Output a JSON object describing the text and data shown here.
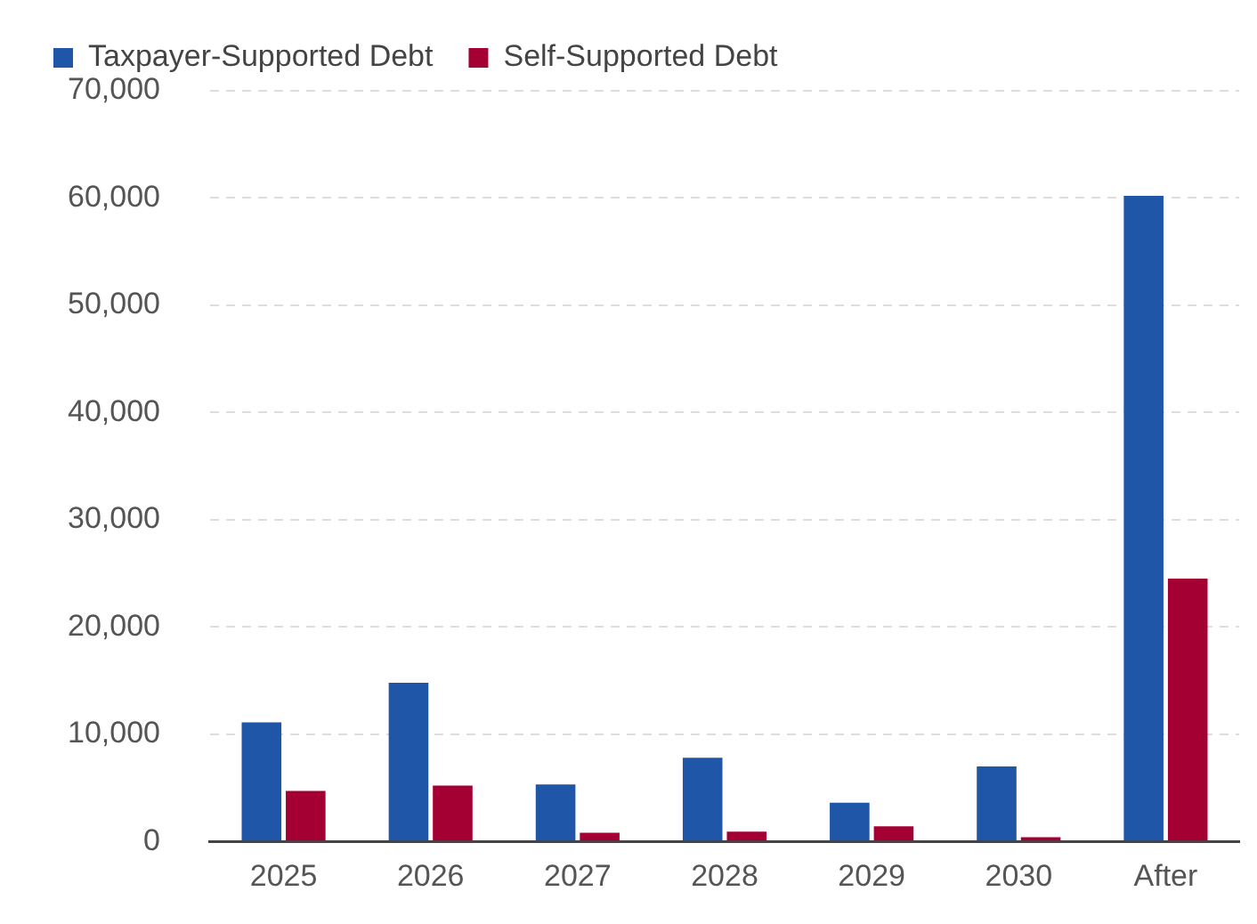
{
  "chart_data": {
    "type": "bar",
    "categories": [
      "2025",
      "2026",
      "2027",
      "2028",
      "2029",
      "2030",
      "After"
    ],
    "series": [
      {
        "name": "Taxpayer-Supported Debt",
        "color": "#1f56a8",
        "values": [
          11100,
          14800,
          5300,
          7800,
          3600,
          7000,
          60200
        ]
      },
      {
        "name": "Self-Supported Debt",
        "color": "#a50034",
        "values": [
          4700,
          5200,
          800,
          900,
          1400,
          400,
          24500
        ]
      }
    ],
    "ylim": [
      0,
      70000
    ],
    "yticks": [
      {
        "value": 0,
        "label": "0"
      },
      {
        "value": 10000,
        "label": "10,000"
      },
      {
        "value": 20000,
        "label": "20,000"
      },
      {
        "value": 30000,
        "label": "30,000"
      },
      {
        "value": 40000,
        "label": "40,000"
      },
      {
        "value": 50000,
        "label": "50,000"
      },
      {
        "value": 60000,
        "label": "60,000"
      },
      {
        "value": 70000,
        "label": "70,000"
      }
    ],
    "grid": "y",
    "legend": "top left"
  }
}
